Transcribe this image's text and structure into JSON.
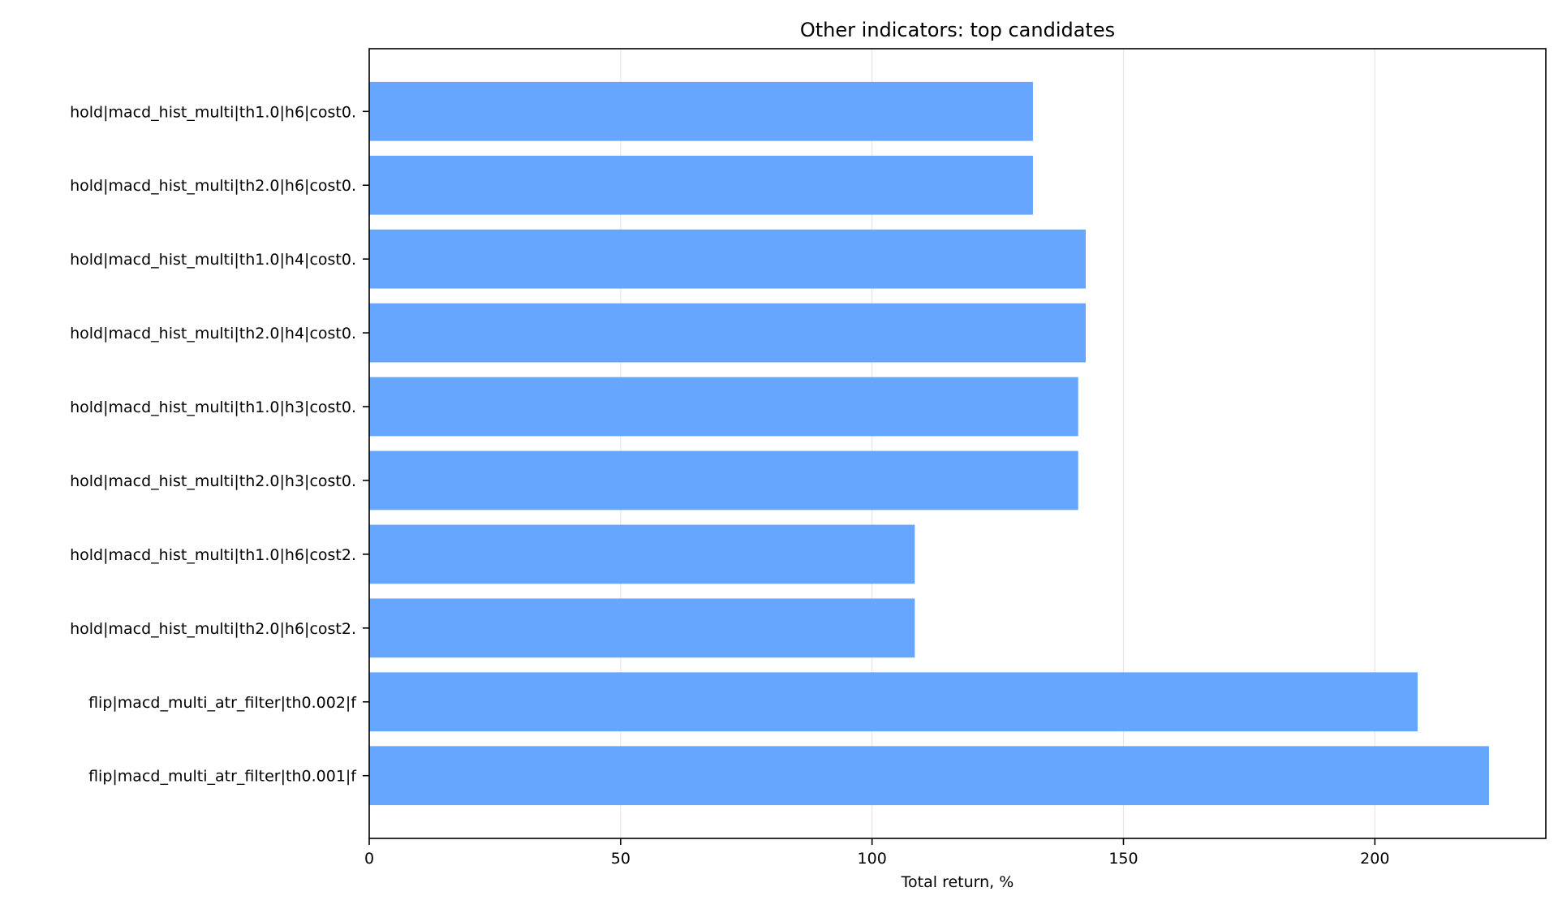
{
  "chart_data": {
    "type": "bar",
    "orientation": "horizontal",
    "title": "Other indicators: top candidates",
    "xlabel": "Total return, %",
    "ylabel": "",
    "xlim": [
      0,
      234
    ],
    "xticks": [
      0,
      50,
      100,
      150,
      200
    ],
    "grid": "x",
    "bar_color": "#66a6ff",
    "categories": [
      "hold|macd_hist_multi|th1.0|h6|cost0.",
      "hold|macd_hist_multi|th2.0|h6|cost0.",
      "hold|macd_hist_multi|th1.0|h4|cost0.",
      "hold|macd_hist_multi|th2.0|h4|cost0.",
      "hold|macd_hist_multi|th1.0|h3|cost0.",
      "hold|macd_hist_multi|th2.0|h3|cost0.",
      "hold|macd_hist_multi|th1.0|h6|cost2.",
      "hold|macd_hist_multi|th2.0|h6|cost2.",
      "flip|macd_multi_atr_filter|th0.002|f",
      "flip|macd_multi_atr_filter|th0.001|f"
    ],
    "values": [
      132,
      132,
      142.5,
      142.5,
      141,
      141,
      108.5,
      108.5,
      208.5,
      222.7
    ]
  }
}
